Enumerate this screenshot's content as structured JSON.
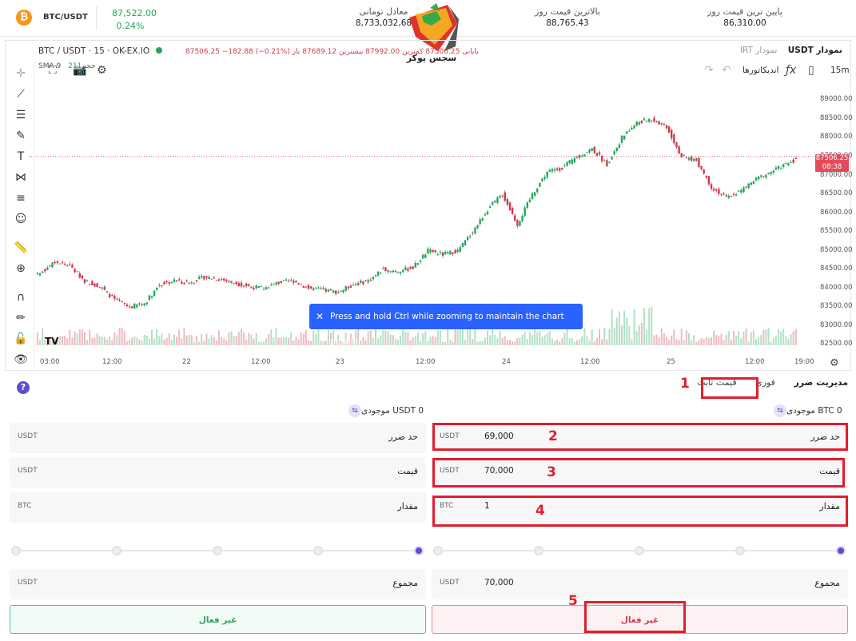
{
  "ticker": {
    "pair": "BTC/USDT",
    "price": "87,522.00",
    "change": "0.24%",
    "toman_label": "معادل تومانی",
    "toman_value": "8,733,032,68",
    "high_label": "بالاترین قیمت روز",
    "high_value": "88,765.43",
    "low_label": "پایین ترین قیمت روز",
    "low_value": "86,310.00"
  },
  "logo_text": "سجس پوکر",
  "chart_tabs": {
    "usdt": "نمودار USDT",
    "irt": "نمودار IRT"
  },
  "toolbar": {
    "interval": "15m",
    "indicators": "اندیکاتورها"
  },
  "legend": {
    "symbol": "BTC / USDT · 15 · OK-EX.IO",
    "ohlc": "87506.25 −182.88 (−0.21%)  یایانی 87506.25  کمترین 87992.00  بیشترین 87689.12 باز",
    "sma_label": "SMA 9  حجم",
    "sma_value": "211"
  },
  "price_tag": {
    "price": "87506.25",
    "time": "08:38"
  },
  "toast": "Press and hold Ctrl while zooming to maintain the chart position",
  "chart_data": {
    "type": "line",
    "x_ticks": [
      "03:00",
      "12:00",
      "22",
      "12:00",
      "23",
      "12:00",
      "24",
      "12:00",
      "25",
      "12:00",
      "19:00"
    ],
    "y_ticks": [
      89000,
      88500,
      88000,
      87500,
      87000,
      86500,
      86000,
      85500,
      85000,
      84500,
      84000,
      83500,
      83000,
      82500
    ],
    "ylim": [
      82400,
      89200
    ],
    "series": [
      {
        "values": [
          84400,
          84700,
          84600,
          84200,
          84050,
          83700,
          83500,
          83600,
          84100,
          84200,
          84150,
          84300,
          84250,
          84150,
          84050,
          84000,
          84150,
          84200,
          84000,
          83950,
          83900,
          84100,
          84200,
          84500,
          84450,
          84550,
          85000,
          84900,
          85000,
          85500,
          86100,
          86500,
          85700,
          86500,
          87100,
          87200,
          87500,
          87700,
          87300,
          88000,
          88400,
          88500,
          88300,
          87500,
          87400,
          86700,
          86400,
          86600,
          86900,
          87100,
          87300,
          87506
        ]
      }
    ]
  },
  "order_tabs": {
    "risk": "مدیریت ضرر",
    "spot": "فوری",
    "fixed": "قیمت ثابت"
  },
  "balance_left": "USDT 0  موجودی",
  "balance_right": "BTC 0  موجودی",
  "buy_form": {
    "stop": {
      "label": "حد ضرر",
      "unit": "USDT",
      "value": ""
    },
    "price": {
      "label": "قیمت",
      "unit": "USDT",
      "value": ""
    },
    "amount": {
      "label": "مقدار",
      "unit": "BTC",
      "value": ""
    },
    "total": {
      "label": "مجموع",
      "unit": "USDT",
      "value": ""
    },
    "button": "غیر فعال"
  },
  "sell_form": {
    "stop": {
      "label": "حد ضرر",
      "unit": "USDT",
      "value": "69,000"
    },
    "price": {
      "label": "قیمت",
      "unit": "USDT",
      "value": "70,000"
    },
    "amount": {
      "label": "مقدار",
      "unit": "BTC",
      "value": "1"
    },
    "total": {
      "label": "مجموع",
      "unit": "USDT",
      "value": "70,000"
    },
    "button": "غیر فعال"
  },
  "annotations": [
    "1",
    "2",
    "3",
    "4",
    "5"
  ],
  "colors": {
    "up": "#26a65b",
    "down": "#d0394d",
    "accent": "#5b4fcf",
    "highlight": "#e01e2e"
  }
}
